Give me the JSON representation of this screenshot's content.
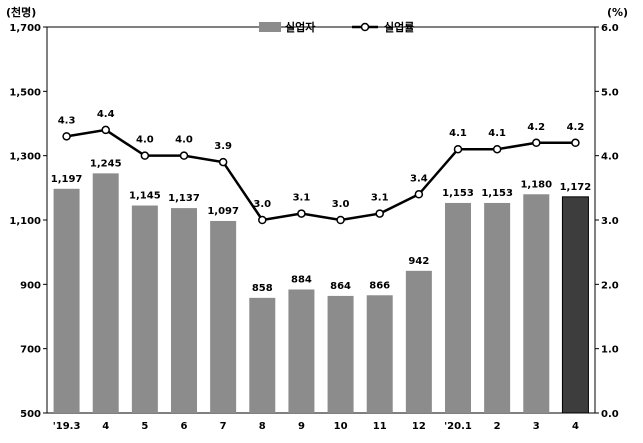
{
  "chart_data": {
    "type": "bar+line",
    "categories": [
      "'19.3",
      "4",
      "5",
      "6",
      "7",
      "8",
      "9",
      "10",
      "11",
      "12",
      "'20.1",
      "2",
      "3",
      "4"
    ],
    "series": [
      {
        "name": "실업자",
        "type": "bar",
        "axis": "left",
        "values": [
          1197,
          1245,
          1145,
          1137,
          1097,
          858,
          884,
          864,
          866,
          942,
          1153,
          1153,
          1180,
          1172
        ],
        "value_labels": [
          "1,197",
          "1,245",
          "1,145",
          "1,137",
          "1,097",
          "858",
          "884",
          "864",
          "866",
          "942",
          "1,153",
          "1,153",
          "1,180",
          "1,172"
        ],
        "color": "#8c8c8c",
        "highlight_last_color": "#3d3d3d"
      },
      {
        "name": "실업률",
        "type": "line",
        "axis": "right",
        "values": [
          4.3,
          4.4,
          4.0,
          4.0,
          3.9,
          3.0,
          3.1,
          3.0,
          3.1,
          3.4,
          4.1,
          4.1,
          4.2,
          4.2
        ],
        "value_labels": [
          "4.3",
          "4.4",
          "4.0",
          "4.0",
          "3.9",
          "3.0",
          "3.1",
          "3.0",
          "3.1",
          "3.4",
          "4.1",
          "4.1",
          "4.2",
          "4.2"
        ],
        "color": "#000000"
      }
    ],
    "left_axis": {
      "unit": "(천명)",
      "ylim": [
        500,
        1700
      ],
      "ticks": [
        "500",
        "700",
        "900",
        "1,100",
        "1,300",
        "1,500",
        "1,700"
      ]
    },
    "right_axis": {
      "unit": "(%)",
      "ylim": [
        0,
        6
      ],
      "ticks": [
        "0.0",
        "1.0",
        "2.0",
        "3.0",
        "4.0",
        "5.0",
        "6.0"
      ]
    },
    "legend": {
      "placement": "top-center",
      "bar_label": "실업자",
      "line_label": "실업률"
    },
    "grid": false
  }
}
